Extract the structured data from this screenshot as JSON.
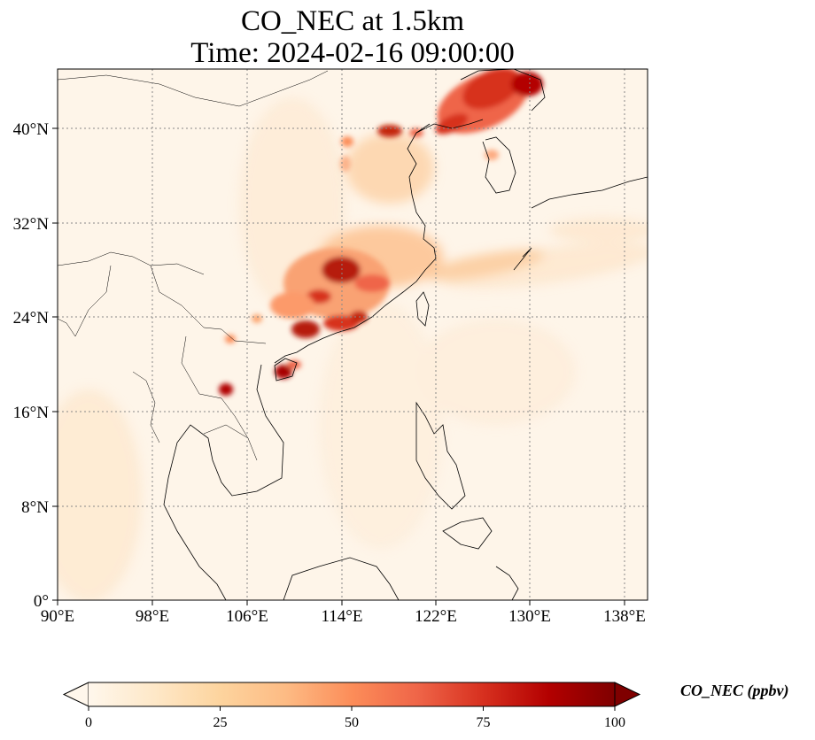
{
  "title": {
    "line1": "CO_NEC at 1.5km",
    "line2": "Time: 2024-02-16 09:00:00"
  },
  "map": {
    "lon_ticks": [
      "90°E",
      "98°E",
      "106°E",
      "114°E",
      "122°E",
      "130°E",
      "138°E"
    ],
    "lat_ticks": [
      "0°",
      "8°N",
      "16°N",
      "24°N",
      "32°N",
      "40°N"
    ],
    "lon_range": [
      90,
      139.5
    ],
    "lat_range": [
      0,
      45
    ],
    "gridlines": "dotted",
    "projection": "PlateCarree"
  },
  "colorbar": {
    "label": "CO_NEC (ppbv)",
    "ticks": [
      "0",
      "25",
      "50",
      "75",
      "100"
    ],
    "range": [
      0,
      100
    ],
    "colormap": "OrRd",
    "extend": "both",
    "colors": [
      "#fff7ec",
      "#fee8c8",
      "#fdd49e",
      "#fdbb84",
      "#fc8d59",
      "#ef6548",
      "#d7301f",
      "#b30000",
      "#7f0000"
    ]
  },
  "plumes": [
    {
      "region": "Northeast China / Liaoning",
      "level": "high (≈75–100 ppbv)"
    },
    {
      "region": "Beijing–Tianjin",
      "level": "high (≈75 ppbv)"
    },
    {
      "region": "Central/Southern China (Hunan–Jiangxi)",
      "level": "very high (≈100 ppbv)"
    },
    {
      "region": "Guangdong / Pearl River Delta",
      "level": "very high (≈100 ppbv)"
    },
    {
      "region": "Hainan",
      "level": "very high (≈100 ppbv)"
    },
    {
      "region": "Northern Laos",
      "level": "very high (≈100 ppbv)"
    },
    {
      "region": "East China Sea outflow band",
      "level": "low (≈10–20 ppbv)"
    }
  ]
}
